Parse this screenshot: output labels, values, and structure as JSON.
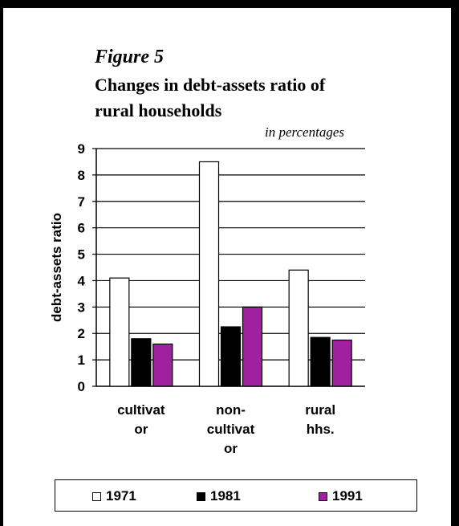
{
  "figure_label": "Figure 5",
  "title_lines": [
    "Changes in debt-assets ratio of",
    "rural households"
  ],
  "subtitle": "in percentages",
  "chart_data": {
    "type": "bar",
    "title": "Changes in debt-assets ratio of rural households",
    "subtitle": "in percentages",
    "ylabel": "debt-assets ratio",
    "xlabel": "",
    "ylim": [
      0,
      9
    ],
    "yticks": [
      0,
      1,
      2,
      3,
      4,
      5,
      6,
      7,
      8,
      9
    ],
    "grid": true,
    "legend_position": "bottom",
    "categories": [
      [
        "cultivat",
        "or"
      ],
      [
        "non-",
        "cultivat",
        "or"
      ],
      [
        "rural",
        "hhs."
      ]
    ],
    "series": [
      {
        "name": "1971",
        "color": "#ffffff",
        "values": [
          4.1,
          8.5,
          4.4
        ]
      },
      {
        "name": "1981",
        "color": "#000000",
        "values": [
          1.8,
          2.25,
          1.85
        ]
      },
      {
        "name": "1991",
        "color": "#a020a0",
        "values": [
          1.6,
          3.0,
          1.75
        ]
      }
    ]
  }
}
